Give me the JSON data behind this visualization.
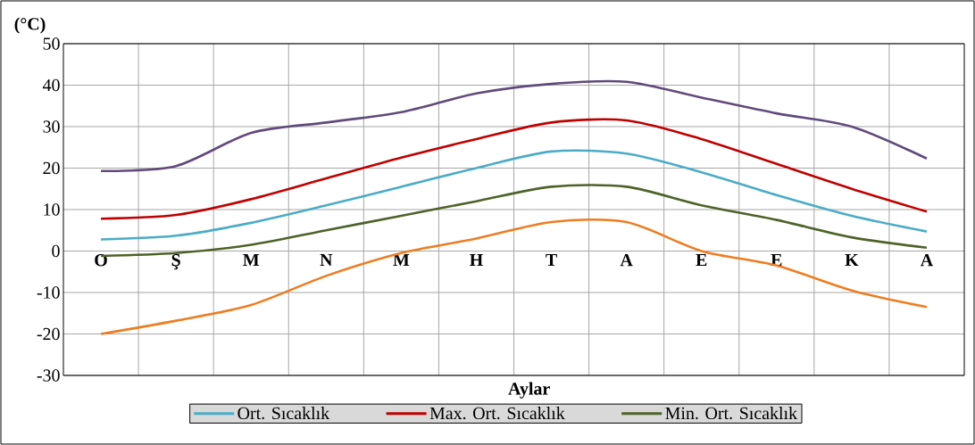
{
  "chart_data": {
    "type": "line",
    "xlabel": "Aylar",
    "ylabel": "(°C)",
    "categories": [
      "O",
      "Ş",
      "M",
      "N",
      "M",
      "H",
      "T",
      "A",
      "E",
      "E",
      "K",
      "A"
    ],
    "series": [
      {
        "name": "Ort. Sıcaklık",
        "color": "#4bacc6",
        "values": [
          2.8,
          3.7,
          6.8,
          11,
          15.5,
          20,
          24,
          23.5,
          19,
          13.5,
          8.5,
          4.7
        ]
      },
      {
        "name": "Max. Ort. Sıcaklık",
        "color": "#c00000",
        "values": [
          7.8,
          8.7,
          12.5,
          17.5,
          22.5,
          27,
          31,
          31.5,
          27,
          21,
          15,
          9.5
        ]
      },
      {
        "name": "Min. Ort. Sıcaklık",
        "color": "#4f6228",
        "values": [
          -1.2,
          -0.5,
          1.5,
          5,
          8.5,
          12,
          15.5,
          15.5,
          11,
          7.5,
          3.3,
          0.8
        ]
      },
      {
        "color": "#ee7d21",
        "values": [
          -20,
          -16.8,
          -13,
          -6,
          -0.5,
          3,
          7,
          7,
          0,
          -3.5,
          -9.5,
          -13.5
        ]
      },
      {
        "color": "#604a7b",
        "values": [
          19.3,
          20.5,
          28.5,
          31,
          33.5,
          38,
          40.3,
          40.8,
          37,
          33.2,
          30,
          22.3
        ]
      }
    ],
    "ylim": [
      -30,
      50
    ],
    "yticks": [
      -30,
      -20,
      -10,
      0,
      10,
      20,
      30,
      40,
      50
    ],
    "grid": true,
    "legend": "bottom"
  }
}
